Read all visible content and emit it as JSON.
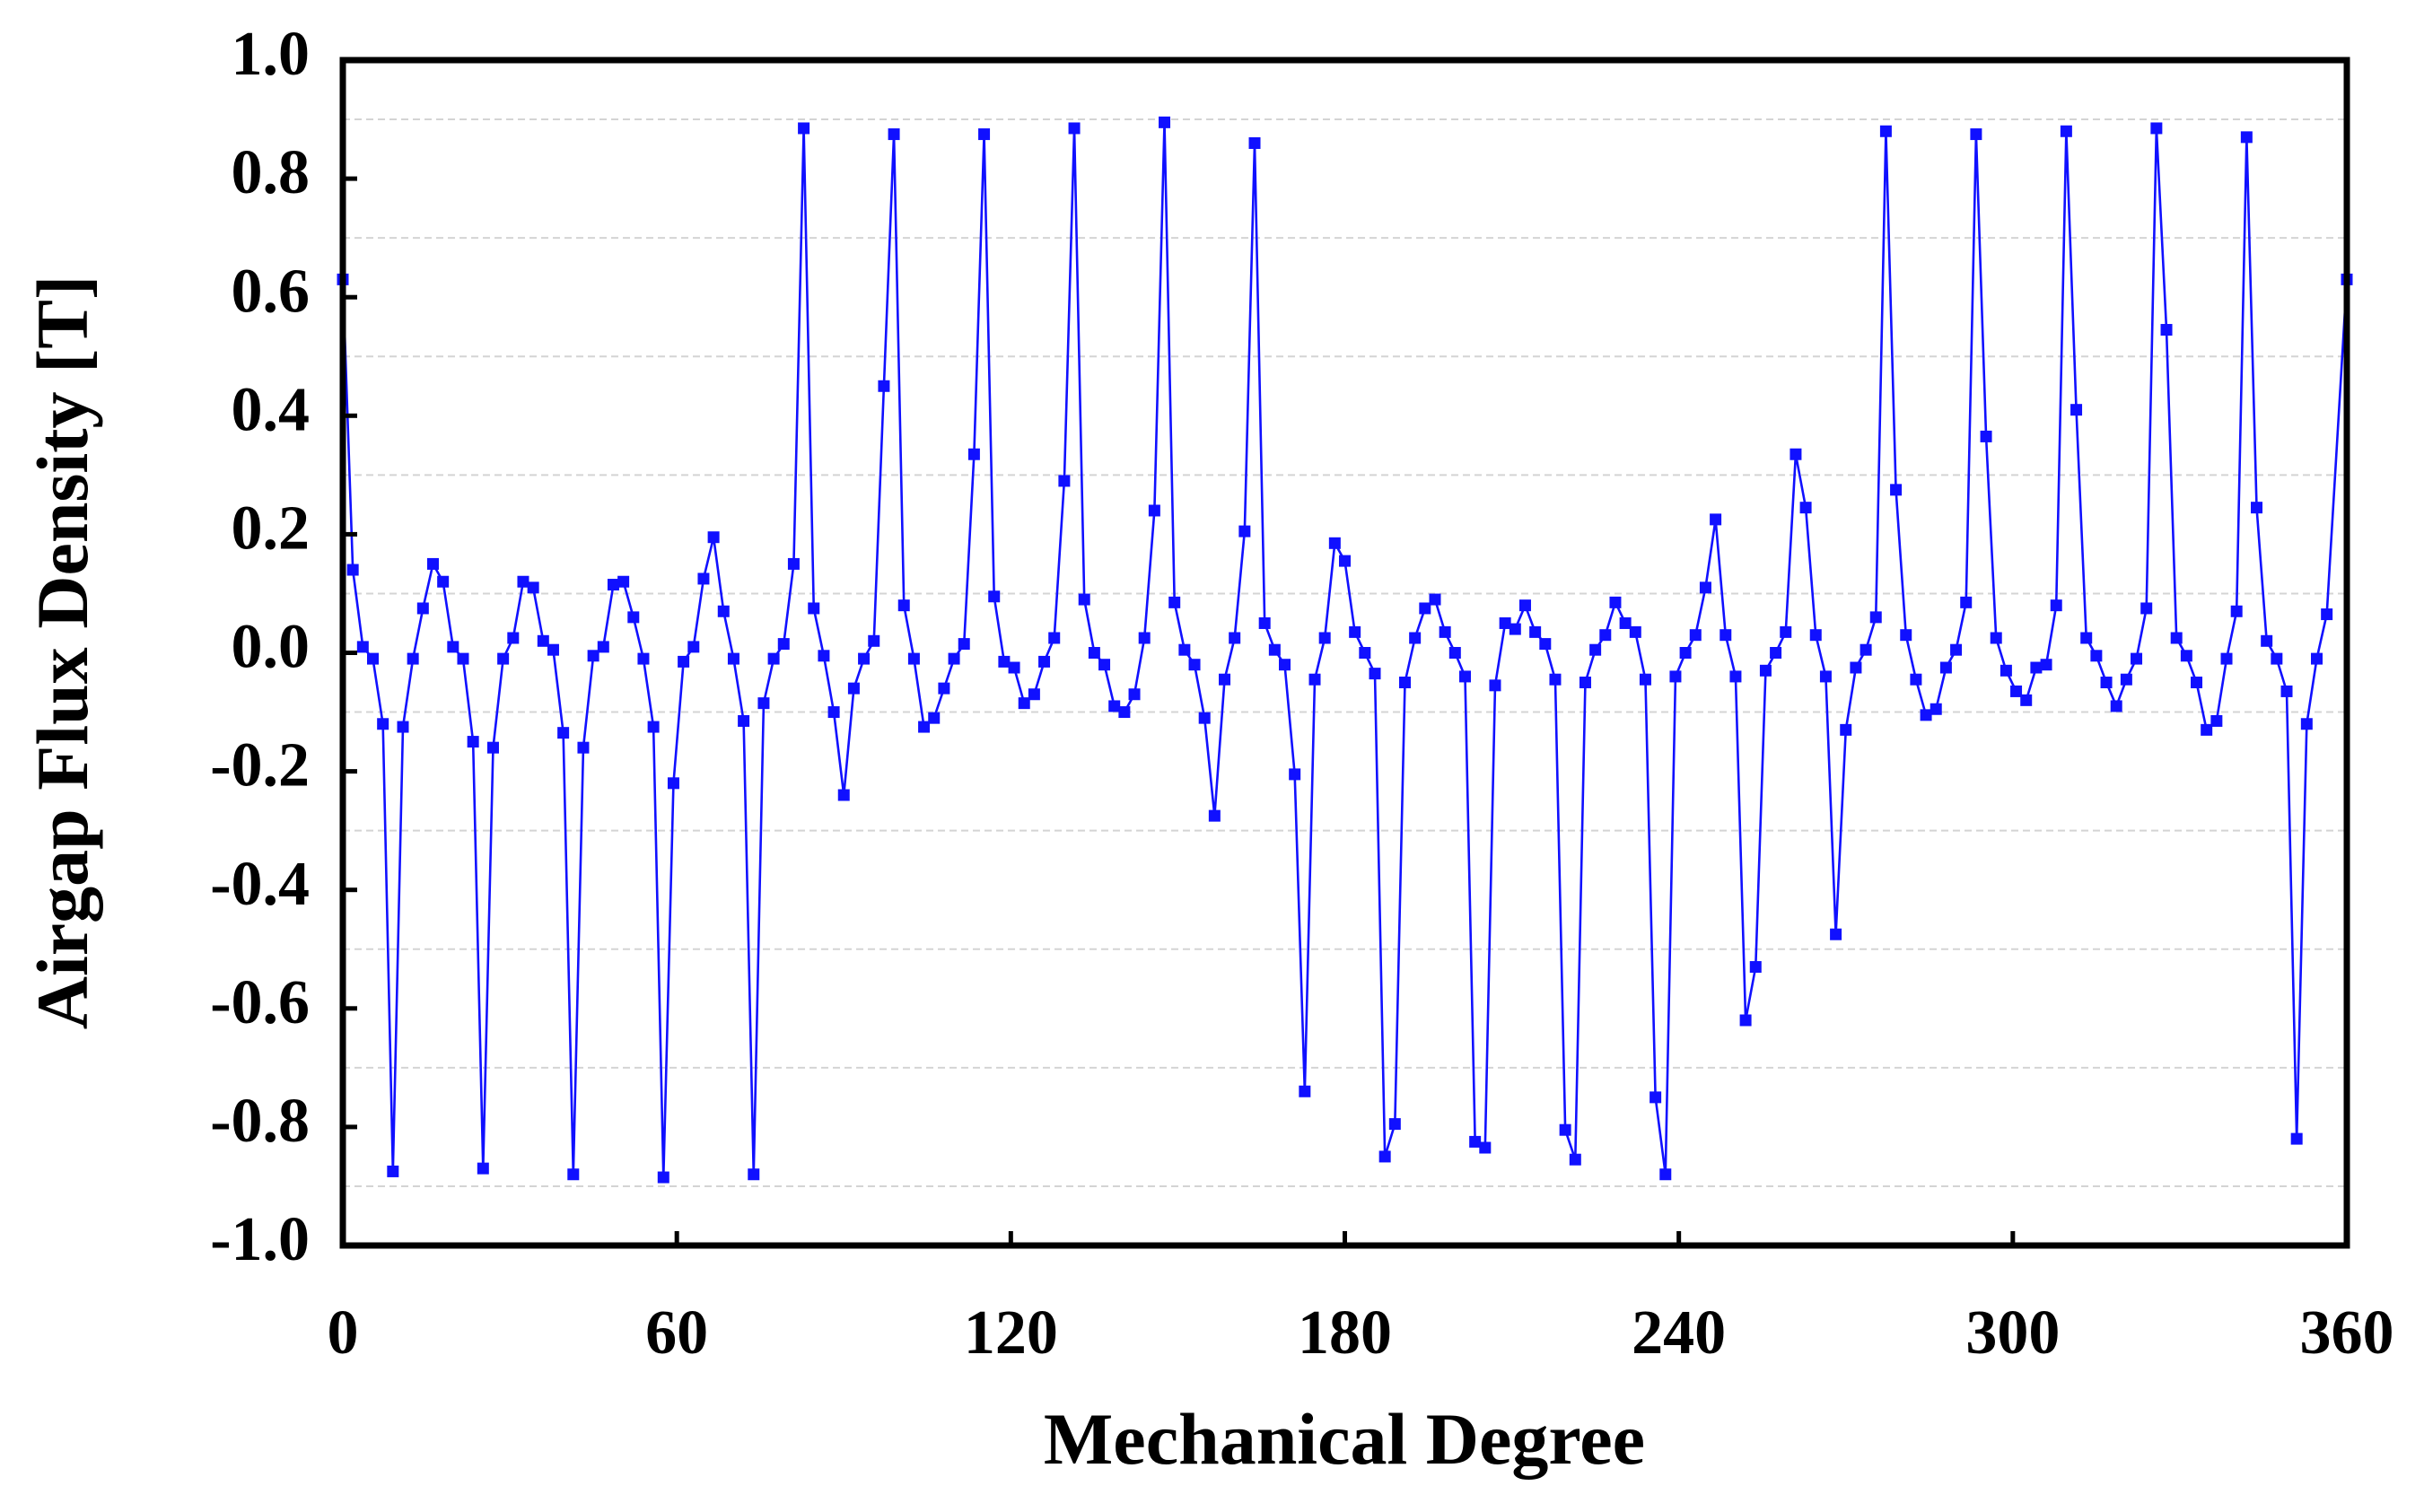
{
  "chart_data": {
    "type": "line",
    "x_label": "Mechanical Degree",
    "y_label": "Airgap Flux Density [T]",
    "xlim": [
      0,
      360
    ],
    "xticks": [
      0,
      60,
      120,
      180,
      240,
      300,
      360
    ],
    "ylim": [
      -1.0,
      1.0
    ],
    "yticks": [
      {
        "value": -1.0,
        "label": "-1.0"
      },
      {
        "value": -0.8,
        "label": "-0.8"
      },
      {
        "value": -0.6,
        "label": "-0.6"
      },
      {
        "value": -0.4,
        "label": "-0.4"
      },
      {
        "value": -0.2,
        "label": "-0.2"
      },
      {
        "value": 0.0,
        "label": "0.0"
      },
      {
        "value": 0.2,
        "label": "0.2"
      },
      {
        "value": 0.4,
        "label": "0.4"
      },
      {
        "value": 0.6,
        "label": "0.6"
      },
      {
        "value": 0.8,
        "label": "0.8"
      },
      {
        "value": 1.0,
        "label": "1.0"
      }
    ],
    "grid": true,
    "grid_yticks": [
      -0.9,
      -0.7,
      -0.5,
      -0.3,
      -0.1,
      0.1,
      0.3,
      0.5,
      0.7,
      0.9
    ],
    "x": [
      0,
      1.8,
      3.6,
      5.4,
      7.2,
      9,
      10.8,
      12.6,
      14.4,
      16.2,
      18,
      19.8,
      21.6,
      23.4,
      25.2,
      27,
      28.8,
      30.6,
      32.4,
      34.2,
      36,
      37.8,
      39.6,
      41.4,
      43.2,
      45,
      46.8,
      48.6,
      50.4,
      52.2,
      54,
      55.8,
      57.6,
      59.4,
      61.2,
      63,
      64.8,
      66.6,
      68.4,
      70.2,
      72,
      73.8,
      75.6,
      77.4,
      79.2,
      81,
      82.8,
      84.6,
      86.4,
      88.2,
      90,
      91.8,
      93.6,
      95.4,
      97.2,
      99,
      100.8,
      102.6,
      104.4,
      106.2,
      108,
      109.8,
      111.6,
      113.4,
      115.2,
      117,
      118.8,
      120.6,
      122.4,
      124.2,
      126,
      127.8,
      129.6,
      131.4,
      133.2,
      135,
      136.8,
      138.6,
      140.4,
      142.2,
      144,
      145.8,
      147.6,
      149.4,
      151.2,
      153,
      154.8,
      156.6,
      158.4,
      160.2,
      162,
      163.8,
      165.6,
      167.4,
      169.2,
      171,
      172.8,
      174.6,
      176.4,
      178.2,
      180,
      181.8,
      183.6,
      185.4,
      187.2,
      189,
      190.8,
      192.6,
      194.4,
      196.2,
      198,
      199.8,
      201.6,
      203.4,
      205.2,
      207,
      208.8,
      210.6,
      212.4,
      214.2,
      216,
      217.8,
      219.6,
      221.4,
      223.2,
      225,
      226.8,
      228.6,
      230.4,
      232.2,
      234,
      235.8,
      237.6,
      239.4,
      241.2,
      243,
      244.8,
      246.6,
      248.4,
      250.2,
      252,
      253.8,
      255.6,
      257.4,
      259.2,
      261,
      262.8,
      264.6,
      266.4,
      268.2,
      270,
      271.8,
      273.6,
      275.4,
      277.2,
      279,
      280.8,
      282.6,
      284.4,
      286.2,
      288,
      289.8,
      291.6,
      293.4,
      295.2,
      297,
      298.8,
      300.6,
      302.4,
      304.2,
      306,
      307.8,
      309.6,
      311.4,
      313.2,
      315,
      316.8,
      318.6,
      320.4,
      322.2,
      324,
      325.8,
      327.6,
      329.4,
      331.2,
      333,
      334.8,
      336.6,
      338.4,
      340.2,
      342,
      343.8,
      345.6,
      347.4,
      349.2,
      351,
      352.8,
      354.6,
      356.4,
      360
    ],
    "series": [
      {
        "color": "#1010ff",
        "values": [
          0.63,
          0.14,
          0.01,
          -0.01,
          -0.12,
          -0.875,
          -0.125,
          -0.01,
          0.075,
          0.15,
          0.12,
          0.01,
          -0.01,
          -0.15,
          -0.87,
          -0.16,
          -0.01,
          0.025,
          0.12,
          0.11,
          0.02,
          0.005,
          -0.135,
          -0.88,
          -0.16,
          -0.005,
          0.01,
          0.115,
          0.12,
          0.06,
          -0.01,
          -0.125,
          -0.885,
          -0.22,
          -0.015,
          0.01,
          0.125,
          0.195,
          0.07,
          -0.01,
          -0.115,
          -0.88,
          -0.085,
          -0.01,
          0.015,
          0.15,
          0.885,
          0.075,
          -0.005,
          -0.1,
          -0.24,
          -0.06,
          -0.01,
          0.02,
          0.45,
          0.875,
          0.08,
          -0.01,
          -0.125,
          -0.11,
          -0.06,
          -0.01,
          0.015,
          0.335,
          0.875,
          0.095,
          -0.015,
          -0.025,
          -0.085,
          -0.07,
          -0.015,
          0.025,
          0.29,
          0.885,
          0.09,
          0.0,
          -0.02,
          -0.09,
          -0.1,
          -0.07,
          0.025,
          0.24,
          0.895,
          0.085,
          0.005,
          -0.02,
          -0.11,
          -0.275,
          -0.045,
          0.025,
          0.205,
          0.86,
          0.05,
          0.005,
          -0.02,
          -0.205,
          -0.74,
          -0.045,
          0.025,
          0.185,
          0.155,
          0.035,
          0.0,
          -0.035,
          -0.85,
          -0.795,
          -0.05,
          0.025,
          0.075,
          0.09,
          0.035,
          0.0,
          -0.04,
          -0.825,
          -0.835,
          -0.055,
          0.05,
          0.04,
          0.08,
          0.035,
          0.015,
          -0.045,
          -0.805,
          -0.855,
          -0.05,
          0.005,
          0.03,
          0.085,
          0.05,
          0.035,
          -0.045,
          -0.75,
          -0.88,
          -0.04,
          0.0,
          0.03,
          0.11,
          0.225,
          0.03,
          -0.04,
          -0.62,
          -0.53,
          -0.03,
          0.0,
          0.035,
          0.335,
          0.245,
          0.03,
          -0.04,
          -0.475,
          -0.13,
          -0.025,
          0.005,
          0.06,
          0.88,
          0.275,
          0.03,
          -0.045,
          -0.105,
          -0.095,
          -0.025,
          0.005,
          0.085,
          0.875,
          0.365,
          0.025,
          -0.03,
          -0.065,
          -0.08,
          -0.025,
          -0.02,
          0.08,
          0.88,
          0.41,
          0.025,
          -0.005,
          -0.05,
          -0.09,
          -0.045,
          -0.01,
          0.075,
          0.885,
          0.545,
          0.025,
          -0.005,
          -0.05,
          -0.13,
          -0.115,
          -0.01,
          0.07,
          0.87,
          0.245,
          0.02,
          -0.01,
          -0.065,
          -0.82,
          -0.12,
          -0.01,
          0.065,
          0.63
        ]
      }
    ]
  }
}
